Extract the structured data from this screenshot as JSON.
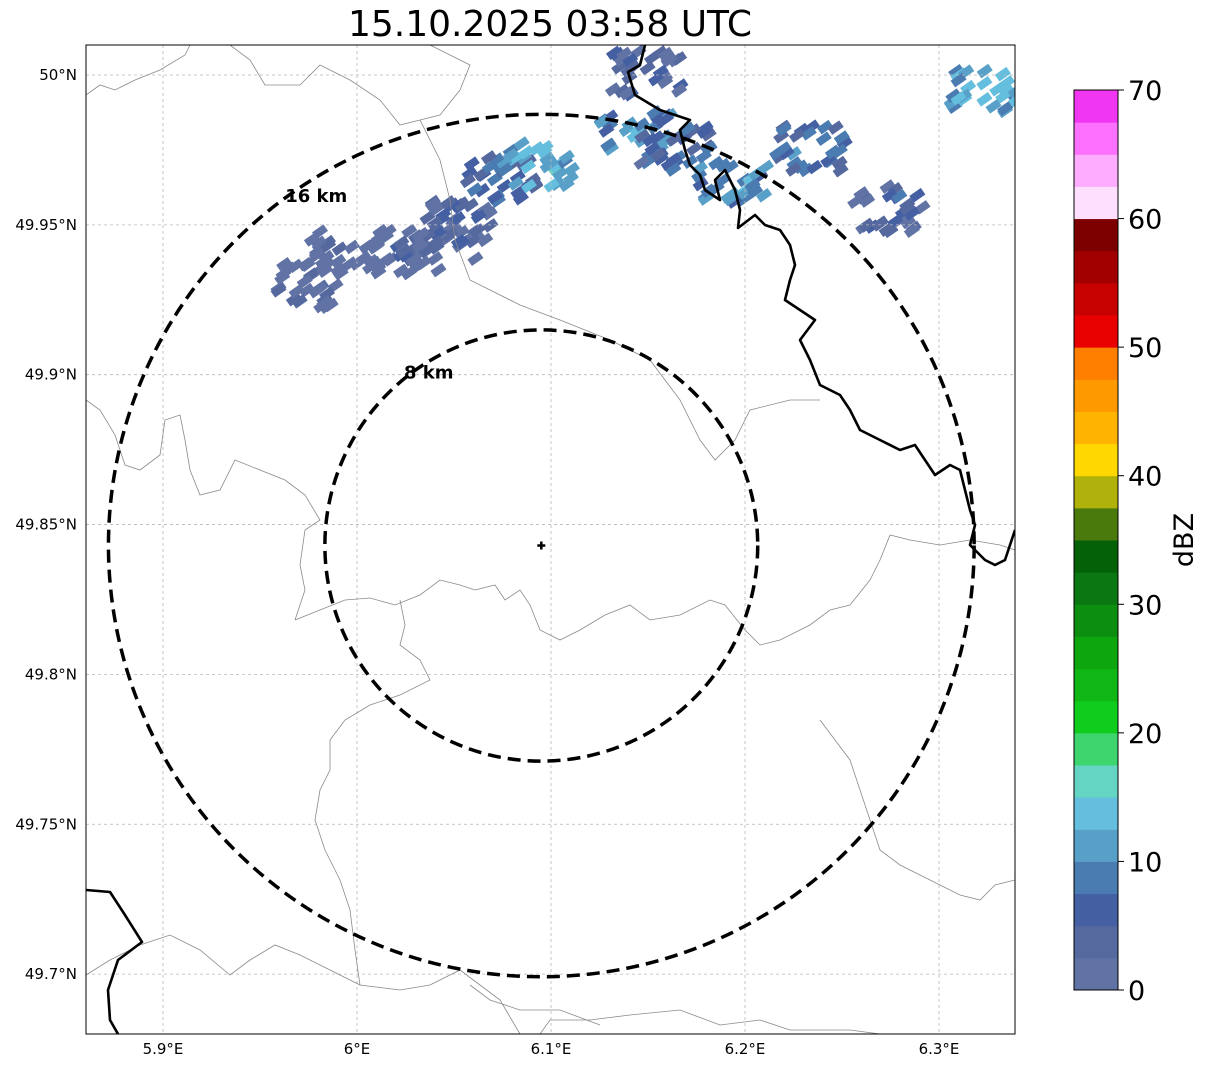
{
  "title": "15.10.2025 03:58 UTC",
  "map": {
    "lon_range": [
      5.86,
      6.34
    ],
    "lat_range": [
      49.68,
      50.01
    ],
    "radar_site": {
      "lon": 6.095,
      "lat": 49.843
    },
    "lon_ticks": [
      5.9,
      6.0,
      6.1,
      6.2,
      6.3
    ],
    "lon_tick_labels": [
      "5.9°E",
      "6°E",
      "6.1°E",
      "6.2°E",
      "6.3°E"
    ],
    "lat_ticks": [
      50.0,
      49.95,
      49.9,
      49.85,
      49.8,
      49.75,
      49.7
    ],
    "lat_tick_labels": [
      "50°N",
      "49.95°N",
      "49.9°N",
      "49.85°N",
      "49.8°N",
      "49.75°N",
      "49.7°N"
    ],
    "gridlines": true,
    "range_rings": [
      {
        "label": "8 km",
        "radius_km": 8
      },
      {
        "label": "16 km",
        "radius_km": 16
      }
    ],
    "layers": [
      "radar reflectivity",
      "country borders",
      "regional borders",
      "range rings",
      "radar site marker"
    ]
  },
  "colorbar": {
    "label": "dBZ",
    "min": 0,
    "max": 70,
    "tick_labels": [
      "0",
      "10",
      "20",
      "30",
      "40",
      "50",
      "60",
      "70"
    ],
    "colors": [
      "#6173a5",
      "#56699f",
      "#4460a3",
      "#4a7bb1",
      "#58a0c8",
      "#64bedd",
      "#63d5c2",
      "#3dd56e",
      "#10cc1c",
      "#10b613",
      "#0ea60f",
      "#0c8e10",
      "#0b7712",
      "#046108",
      "#4a7a0c",
      "#b0b10a",
      "#fed800",
      "#feb400",
      "#fe9a00",
      "#fe7e00",
      "#e80000",
      "#c70000",
      "#a20000",
      "#7c0000",
      "#fee0fe",
      "#feacfe",
      "#fe70fe",
      "#f036f0"
    ]
  },
  "reflectivity_cells": [
    {
      "lon": 6.04,
      "lat": 49.945,
      "dbz": 3
    },
    {
      "lon": 6.05,
      "lat": 49.95,
      "dbz": 6
    },
    {
      "lon": 6.07,
      "lat": 49.965,
      "dbz": 8
    },
    {
      "lon": 6.09,
      "lat": 49.97,
      "dbz": 14
    },
    {
      "lon": 6.02,
      "lat": 49.94,
      "dbz": 4
    },
    {
      "lon": 5.99,
      "lat": 49.94,
      "dbz": 2
    },
    {
      "lon": 5.97,
      "lat": 49.93,
      "dbz": 3
    },
    {
      "lon": 6.14,
      "lat": 49.98,
      "dbz": 12
    },
    {
      "lon": 6.16,
      "lat": 49.975,
      "dbz": 8
    },
    {
      "lon": 6.19,
      "lat": 49.965,
      "dbz": 12
    },
    {
      "lon": 6.23,
      "lat": 49.975,
      "dbz": 9
    },
    {
      "lon": 6.27,
      "lat": 49.955,
      "dbz": 6
    },
    {
      "lon": 6.32,
      "lat": 49.995,
      "dbz": 14
    },
    {
      "lon": 6.145,
      "lat": 50.0,
      "dbz": 6
    }
  ]
}
